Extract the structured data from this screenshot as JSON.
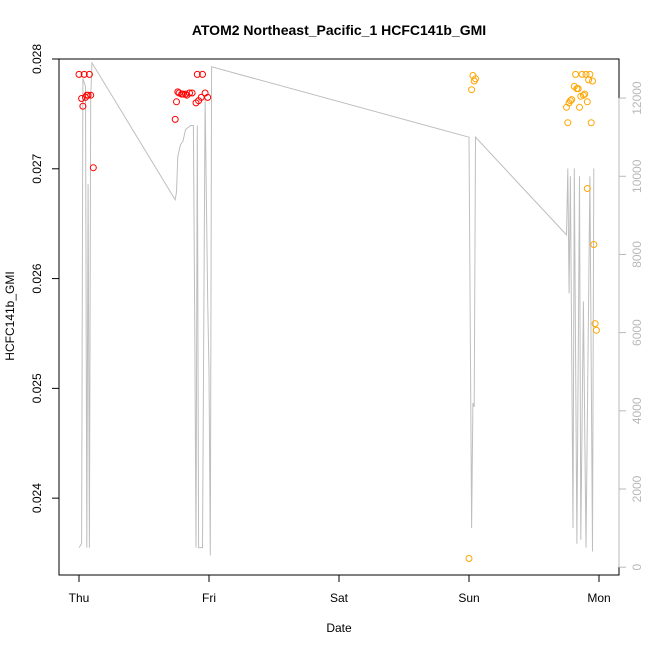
{
  "chart_data": {
    "type": "scatter",
    "title": "ATOM2 Northeast_Pacific_1 HCFC141b_GMI",
    "xlabel": "Date",
    "ylabel": "HCFC141b_GMI",
    "x_ticks": [
      "Thu",
      "Fri",
      "Sat",
      "Sun",
      "Mon"
    ],
    "ylim": [
      0.0233,
      0.028
    ],
    "y_ticks": [
      0.024,
      0.025,
      0.026,
      0.027,
      0.028
    ],
    "y_tick_labels": [
      "0.024",
      "0.025",
      "0.026",
      "0.027",
      "0.028"
    ],
    "y2lim": [
      -200,
      13000
    ],
    "y2_ticks": [
      0,
      2000,
      4000,
      6000,
      8000,
      10000,
      12000
    ],
    "y2_tick_labels": [
      "0",
      "2000",
      "4000",
      "6000",
      "8000",
      "10000",
      "12000"
    ],
    "grid": false,
    "colors": {
      "flight_1": "#ff0000",
      "flight_2": "#ffa500",
      "altitude_line": "#bebebe",
      "right_axis": "#b9b9b9"
    },
    "series": [
      {
        "color_key": "flight_1",
        "points": [
          [
            0.0,
            0.02786
          ],
          [
            0.02,
            0.02764
          ],
          [
            0.03,
            0.02757
          ],
          [
            0.04,
            0.02786
          ],
          [
            0.05,
            0.02765
          ],
          [
            0.06,
            0.02767
          ],
          [
            0.07,
            0.02767
          ],
          [
            0.08,
            0.02786
          ],
          [
            0.09,
            0.02767
          ],
          [
            0.11,
            0.02701
          ],
          [
            0.74,
            0.02745
          ],
          [
            0.75,
            0.02761
          ],
          [
            0.76,
            0.0277
          ],
          [
            0.77,
            0.02769
          ],
          [
            0.79,
            0.02768
          ],
          [
            0.8,
            0.02768
          ],
          [
            0.82,
            0.02768
          ],
          [
            0.83,
            0.02767
          ],
          [
            0.85,
            0.02769
          ],
          [
            0.87,
            0.02769
          ],
          [
            0.9,
            0.0276
          ],
          [
            0.91,
            0.02786
          ],
          [
            0.92,
            0.02762
          ],
          [
            0.94,
            0.02765
          ],
          [
            0.95,
            0.02786
          ],
          [
            0.97,
            0.02769
          ],
          [
            0.99,
            0.02765
          ]
        ]
      },
      {
        "color_key": "flight_2",
        "points": [
          [
            3.0,
            0.02345
          ],
          [
            3.02,
            0.02772
          ],
          [
            3.03,
            0.02785
          ],
          [
            3.04,
            0.0278
          ],
          [
            3.05,
            0.02782
          ],
          [
            3.75,
            0.02756
          ],
          [
            3.76,
            0.02742
          ],
          [
            3.77,
            0.0276
          ],
          [
            3.78,
            0.02762
          ],
          [
            3.79,
            0.02763
          ],
          [
            3.81,
            0.02775
          ],
          [
            3.82,
            0.02786
          ],
          [
            3.83,
            0.02773
          ],
          [
            3.84,
            0.02773
          ],
          [
            3.85,
            0.02756
          ],
          [
            3.86,
            0.02766
          ],
          [
            3.87,
            0.02786
          ],
          [
            3.88,
            0.02767
          ],
          [
            3.89,
            0.02768
          ],
          [
            3.9,
            0.02786
          ],
          [
            3.91,
            0.02761
          ],
          [
            3.92,
            0.02781
          ],
          [
            3.93,
            0.02786
          ],
          [
            3.94,
            0.02742
          ],
          [
            3.96,
            0.02631
          ],
          [
            3.97,
            0.02559
          ],
          [
            3.98,
            0.02553
          ],
          [
            3.91,
            0.02682
          ],
          [
            3.95,
            0.0278
          ]
        ]
      }
    ],
    "altitude_line": [
      [
        0.0,
        500
      ],
      [
        0.02,
        600
      ],
      [
        0.03,
        12500
      ],
      [
        0.05,
        12300
      ],
      [
        0.06,
        500
      ],
      [
        0.07,
        9800
      ],
      [
        0.08,
        500
      ],
      [
        0.09,
        12000
      ],
      [
        0.1,
        12900
      ],
      [
        0.74,
        9400
      ],
      [
        0.75,
        9600
      ],
      [
        0.76,
        10500
      ],
      [
        0.78,
        10800
      ],
      [
        0.8,
        10900
      ],
      [
        0.82,
        11200
      ],
      [
        0.86,
        11300
      ],
      [
        0.88,
        11300
      ],
      [
        0.89,
        6400
      ],
      [
        0.9,
        500
      ],
      [
        0.91,
        11300
      ],
      [
        0.92,
        500
      ],
      [
        0.95,
        500
      ],
      [
        0.97,
        12000
      ],
      [
        0.99,
        6800
      ],
      [
        1.0,
        5000
      ],
      [
        1.01,
        300
      ],
      [
        1.02,
        12800
      ],
      [
        3.0,
        11000
      ],
      [
        3.02,
        1000
      ],
      [
        3.03,
        4200
      ],
      [
        3.04,
        4100
      ],
      [
        3.05,
        11000
      ],
      [
        3.75,
        8500
      ],
      [
        3.76,
        10200
      ],
      [
        3.77,
        7000
      ],
      [
        3.78,
        10000
      ],
      [
        3.8,
        1000
      ],
      [
        3.81,
        10200
      ],
      [
        3.83,
        600
      ],
      [
        3.85,
        10000
      ],
      [
        3.86,
        700
      ],
      [
        3.88,
        6800
      ],
      [
        3.9,
        500
      ],
      [
        3.93,
        10000
      ],
      [
        3.95,
        400
      ],
      [
        3.96,
        10200
      ]
    ]
  }
}
